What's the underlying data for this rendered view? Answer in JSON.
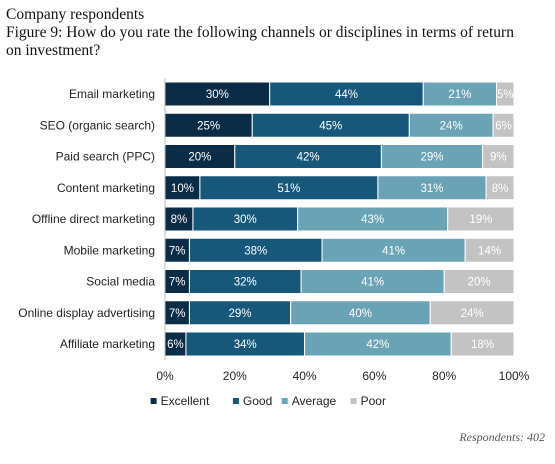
{
  "header": {
    "line1": "Company respondents",
    "line2": "Figure 9: How do you rate the following channels or disciplines in terms of return",
    "line3": "on investment?"
  },
  "footnote": "Respondents: 402",
  "chart_data": {
    "type": "bar",
    "orientation": "horizontal",
    "stacked": true,
    "categories": [
      "Email marketing",
      "SEO (organic search)",
      "Paid search (PPC)",
      "Content marketing",
      "Offline direct marketing",
      "Mobile marketing",
      "Social media",
      "Online display advertising",
      "Affiliate marketing"
    ],
    "series": [
      {
        "name": "Excellent",
        "color": "#0b2c47",
        "values": [
          30,
          25,
          20,
          10,
          8,
          7,
          7,
          7,
          6
        ]
      },
      {
        "name": "Good",
        "color": "#16577a",
        "values": [
          44,
          45,
          42,
          51,
          30,
          38,
          32,
          29,
          34
        ]
      },
      {
        "name": "Average",
        "color": "#6aa3b5",
        "values": [
          21,
          24,
          29,
          31,
          43,
          41,
          41,
          40,
          42
        ]
      },
      {
        "name": "Poor",
        "color": "#c3c3c3",
        "values": [
          5,
          6,
          9,
          8,
          19,
          14,
          20,
          24,
          18
        ]
      }
    ],
    "xticks": [
      "0%",
      "20%",
      "40%",
      "60%",
      "80%",
      "100%"
    ],
    "xlim": [
      0,
      100
    ],
    "legend_position": "bottom",
    "grid": false
  }
}
